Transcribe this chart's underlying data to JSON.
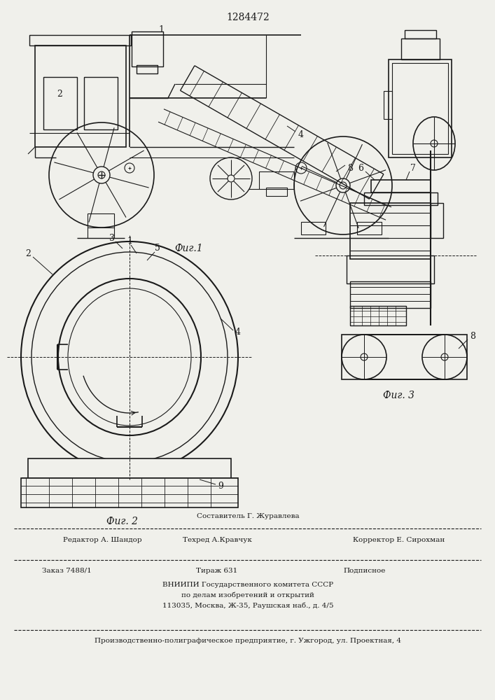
{
  "title": "1284472",
  "fig1_label": "Фиг.1",
  "fig2_label": "Фиг. 2",
  "fig3_label": "Фиг. 3",
  "bg_color": "#f0f0eb",
  "line_color": "#1a1a1a",
  "footer": {
    "line1_center": "Составитель Г. Журавлева",
    "line2_left": "Редактор А. Шандор",
    "line2_center": "Техред А.Кравчук",
    "line2_right": "Корректор Е. Сирохман",
    "line3_left": "Заказ 7488/1",
    "line3_center": "Тираж 631",
    "line3_right": "Подписное",
    "line4": "ВНИИПИ Государственного комитета СССР",
    "line5": "по делам изобретений и открытий",
    "line6": "113035, Москва, Ж-35, Раушская наб., д. 4/5",
    "line7": "Производственно-полиграфическое предприятие, г. Ужгород, ул. Проектная, 4"
  }
}
